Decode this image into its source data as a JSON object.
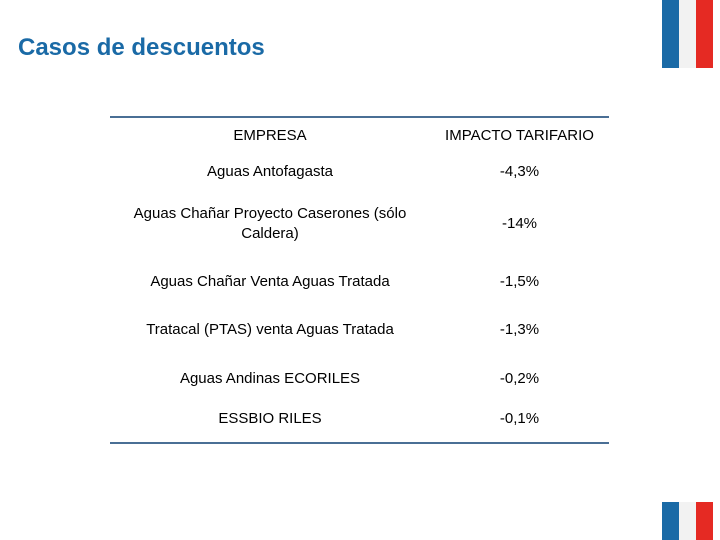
{
  "title": "Casos de descuentos",
  "colors": {
    "title": "#1a6aa6",
    "flag_blue": "#1a6aa6",
    "flag_red": "#e52a23",
    "rule": "#4a6f95"
  },
  "table": {
    "headers": [
      "EMPRESA",
      "IMPACTO TARIFARIO"
    ],
    "rows": [
      {
        "empresa": "Aguas Antofagasta",
        "impacto": "-4,3%"
      },
      {
        "empresa": "Aguas Chañar Proyecto Caserones (sólo Caldera)",
        "impacto": "-14%"
      },
      {
        "empresa": "Aguas Chañar Venta Aguas Tratada",
        "impacto": "-1,5%"
      },
      {
        "empresa": "Tratacal (PTAS) venta Aguas Tratada",
        "impacto": "-1,3%"
      },
      {
        "empresa": "Aguas Andinas ECORILES",
        "impacto": "-0,2%"
      },
      {
        "empresa": "ESSBIO RILES",
        "impacto": "-0,1%"
      }
    ]
  }
}
